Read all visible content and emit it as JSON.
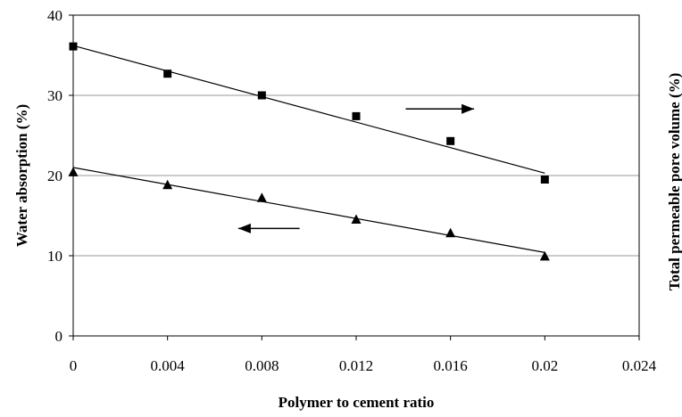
{
  "chart_data": {
    "type": "scatter",
    "title": "",
    "xlabel": "Polymer to cement ratio",
    "ylabel": "Water absorption (%)",
    "y2label": "Total permeable pore volume (%)",
    "xlim": [
      0,
      0.024
    ],
    "ylim": [
      0,
      40
    ],
    "x_ticks": [
      "0",
      "0.004",
      "0.008",
      "0.012",
      "0.016",
      "0.02",
      "0.024"
    ],
    "y_ticks": [
      "0",
      "10",
      "20",
      "30",
      "40"
    ],
    "grid": "horizontal",
    "series": [
      {
        "marker": "square",
        "axis": "right",
        "color": "#000000",
        "x": [
          0,
          0.004,
          0.008,
          0.012,
          0.016,
          0.02
        ],
        "y": [
          36.1,
          32.7,
          30.0,
          27.4,
          24.3,
          19.5
        ],
        "trendline": {
          "x": [
            0,
            0.02
          ],
          "y": [
            36.2,
            20.3
          ]
        }
      },
      {
        "marker": "triangle",
        "axis": "left",
        "color": "#000000",
        "x": [
          0,
          0.004,
          0.008,
          0.012,
          0.016,
          0.02
        ],
        "y": [
          20.4,
          18.8,
          17.2,
          14.5,
          12.8,
          9.9
        ],
        "trendline": {
          "x": [
            0,
            0.02
          ],
          "y": [
            21.0,
            10.4
          ]
        }
      }
    ],
    "annotations": [
      {
        "type": "arrow",
        "direction": "right",
        "x": [
          0.0141,
          0.017
        ],
        "y": 28.3
      },
      {
        "type": "arrow",
        "direction": "left",
        "x": [
          0.0096,
          0.007
        ],
        "y": 13.4
      }
    ]
  }
}
